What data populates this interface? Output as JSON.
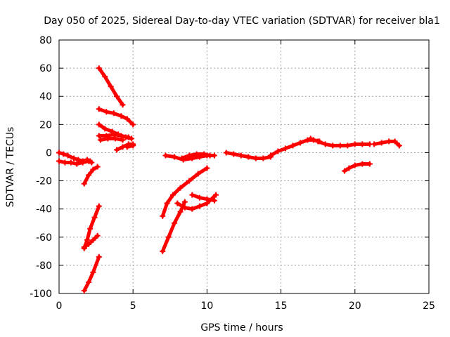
{
  "chart_data": {
    "type": "scatter",
    "title": "Day 050 of 2025, Sidereal Day-to-day VTEC variation (SDTVAR) for receiver bla1",
    "xlabel": "GPS time / hours",
    "ylabel": "SDTVAR / TECUs",
    "xlim": [
      0,
      25
    ],
    "ylim": [
      -100,
      80
    ],
    "xticks": [
      0,
      5,
      10,
      15,
      20,
      25
    ],
    "yticks": [
      -100,
      -80,
      -60,
      -40,
      -20,
      0,
      20,
      40,
      60,
      80
    ],
    "grid": true,
    "color": "#ff0000",
    "series": [
      {
        "x": [
          0.0,
          0.3,
          0.6,
          1.0,
          1.3,
          1.6,
          1.9,
          2.1,
          2.2
        ],
        "y": [
          0,
          -1,
          -2,
          -4,
          -5,
          -6,
          -5,
          -6,
          -7
        ]
      },
      {
        "x": [
          0.0,
          0.4,
          0.8,
          1.2,
          1.6,
          2.0
        ],
        "y": [
          -6,
          -7,
          -7,
          -8,
          -7,
          -6
        ]
      },
      {
        "x": [
          1.7,
          2.0,
          2.3,
          2.6
        ],
        "y": [
          -22,
          -16,
          -12,
          -10
        ]
      },
      {
        "x": [
          1.7,
          2.0,
          2.3,
          2.6
        ],
        "y": [
          -67,
          -65,
          -62,
          -59
        ]
      },
      {
        "x": [
          1.7,
          1.9,
          2.1,
          2.4,
          2.7
        ],
        "y": [
          -68,
          -62,
          -54,
          -46,
          -38
        ]
      },
      {
        "x": [
          1.7,
          2.0,
          2.3,
          2.7
        ],
        "y": [
          -98,
          -92,
          -85,
          -74
        ]
      },
      {
        "x": [
          2.7,
          3.1,
          3.5,
          3.9,
          4.3
        ],
        "y": [
          60,
          54,
          47,
          40,
          34
        ]
      },
      {
        "x": [
          2.7,
          3.2,
          3.7,
          4.2,
          4.6,
          5.0
        ],
        "y": [
          31,
          29,
          28,
          26,
          24,
          20
        ]
      },
      {
        "x": [
          2.7,
          3.1,
          3.6,
          4.0,
          4.5,
          4.9
        ],
        "y": [
          20,
          17,
          15,
          13,
          11,
          10
        ]
      },
      {
        "x": [
          2.7,
          3.2,
          3.7,
          4.2,
          4.7
        ],
        "y": [
          12,
          12,
          13,
          12,
          11
        ]
      },
      {
        "x": [
          2.8,
          3.3,
          3.8,
          4.3
        ],
        "y": [
          9,
          10,
          10,
          9
        ]
      },
      {
        "x": [
          3.9,
          4.3,
          4.7,
          5.0
        ],
        "y": [
          2,
          4,
          6,
          6
        ]
      },
      {
        "x": [
          4.6,
          5.0
        ],
        "y": [
          4,
          5
        ]
      },
      {
        "x": [
          7.0,
          7.3,
          7.7,
          8.2,
          8.8,
          9.4,
          10.0
        ],
        "y": [
          -45,
          -36,
          -30,
          -25,
          -20,
          -15,
          -11
        ]
      },
      {
        "x": [
          7.0,
          7.4,
          7.8,
          8.2,
          8.5
        ],
        "y": [
          -70,
          -60,
          -50,
          -42,
          -35
        ]
      },
      {
        "x": [
          8.0,
          8.5,
          9.0,
          9.5,
          10.0,
          10.6
        ],
        "y": [
          -36,
          -39,
          -40,
          -38,
          -36,
          -30
        ]
      },
      {
        "x": [
          9.0,
          9.5,
          10.0,
          10.5
        ],
        "y": [
          -30,
          -32,
          -33,
          -34
        ]
      },
      {
        "x": [
          7.2,
          7.8,
          8.4,
          9.0,
          9.5,
          10.0,
          10.5
        ],
        "y": [
          -2,
          -3,
          -5,
          -4,
          -3,
          -2,
          -2
        ]
      },
      {
        "x": [
          8.3,
          8.8,
          9.3,
          9.8,
          10.2
        ],
        "y": [
          -4,
          -2,
          -1,
          -1,
          -2
        ]
      },
      {
        "x": [
          11.3,
          11.8,
          12.3,
          12.8,
          13.3,
          13.8,
          14.3
        ],
        "y": [
          0,
          -1,
          -2,
          -3,
          -4,
          -4,
          -3
        ]
      },
      {
        "x": [
          14.3,
          14.8,
          15.3,
          15.8,
          16.3,
          16.8,
          17.2,
          17.6
        ],
        "y": [
          -2,
          1,
          3,
          5,
          7,
          9,
          9,
          8
        ]
      },
      {
        "x": [
          17.0,
          17.5,
          18.0,
          18.5,
          19.0,
          19.5,
          20.0,
          20.5,
          21.0
        ],
        "y": [
          10,
          8,
          6,
          5,
          5,
          5,
          6,
          6,
          6
        ]
      },
      {
        "x": [
          19.3,
          19.6,
          20.0,
          20.5,
          21.0
        ],
        "y": [
          -13,
          -11,
          -9,
          -8,
          -8
        ]
      },
      {
        "x": [
          21.3,
          21.8,
          22.3,
          22.7,
          23.0
        ],
        "y": [
          6,
          7,
          8,
          8,
          5
        ]
      }
    ]
  }
}
